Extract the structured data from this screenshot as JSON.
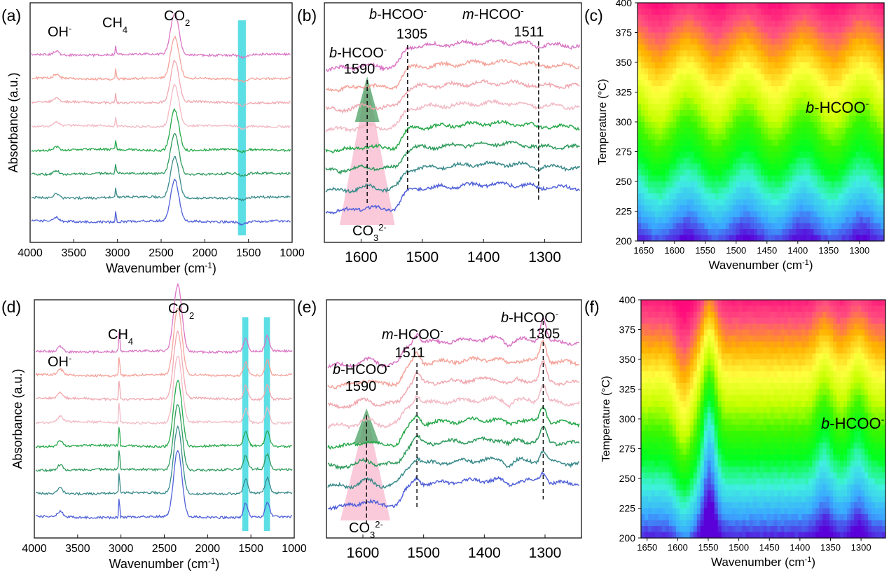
{
  "figure": {
    "panels": {
      "a": {
        "tag": "(a)"
      },
      "b": {
        "tag": "(b)"
      },
      "c": {
        "tag": "(c)"
      },
      "d": {
        "tag": "(d)"
      },
      "e": {
        "tag": "(e)"
      },
      "f": {
        "tag": "(f)"
      }
    }
  },
  "chart_data": [
    {
      "panel": "a",
      "type": "line",
      "xlabel_main": "Wavenumber (cm",
      "xlabel_sup": "-1",
      "xlabel_end": ")",
      "ylabel": "Absorbance (a.u.)",
      "xlim": [
        4000,
        1000
      ],
      "x_reversed": true,
      "xticks": [
        4000,
        3500,
        3000,
        2500,
        2000,
        1500,
        1000
      ],
      "yticks_shown": false,
      "series_colors": [
        "#5060d8",
        "#3a8a8a",
        "#2e9a5c",
        "#26a84a",
        "#f2b9c4",
        "#f0a8b0",
        "#f4a39a",
        "#d975c4"
      ],
      "highlight_bands": [
        [
          1620,
          1530
        ]
      ],
      "highlight_color": "#33d6df",
      "features": [
        {
          "x": 3700,
          "type": "peak",
          "height": 0.6,
          "width": 30
        },
        {
          "x": 3020,
          "type": "spike",
          "height": 1.6,
          "width": 6
        },
        {
          "x": 2340,
          "type": "co2",
          "height": 4.0,
          "width": 40
        },
        {
          "x": 1570,
          "type": "dip",
          "height": -0.4,
          "width": 40
        }
      ],
      "annotations": [
        {
          "x": 3700,
          "main": "OH",
          "sup": "-",
          "sub": ""
        },
        {
          "x": 3020,
          "main": "CH",
          "sup": "",
          "sub": "4"
        },
        {
          "x": 2340,
          "main": "CO",
          "sup": "",
          "sub": "2"
        }
      ]
    },
    {
      "panel": "b",
      "type": "line",
      "xlim": [
        1660,
        1240
      ],
      "x_reversed": true,
      "xticks": [
        1600,
        1500,
        1400,
        1300
      ],
      "yticks_shown": false,
      "series_colors": [
        "#5060d8",
        "#3a8a8a",
        "#2e9a5c",
        "#26a84a",
        "#f2b9c4",
        "#f0a8b0",
        "#f4a39a",
        "#d975c4"
      ],
      "dashed_markers": [
        1590,
        1524,
        1310
      ],
      "regions": [
        {
          "x": [
            1635,
            1590,
            1545
          ],
          "kind": "pink-triangle"
        },
        {
          "x": [
            1610,
            1590,
            1570
          ],
          "kind": "green-triangle"
        }
      ],
      "annotations": [
        {
          "pre": "",
          "italic": "m",
          "main": "-HCOO",
          "sup": "-",
          "sub": "",
          "value": "1511"
        },
        {
          "pre": "",
          "italic": "b",
          "main": "-HCOO",
          "sup": "-",
          "sub": "",
          "value": "1305"
        },
        {
          "pre": "",
          "italic": "b",
          "main": "-HCOO",
          "sup": "-",
          "sub": "",
          "value": "1590"
        },
        {
          "pre": "",
          "italic": "",
          "main": "CO",
          "sup": "2-",
          "sub": "3",
          "value": ""
        }
      ]
    },
    {
      "panel": "c",
      "type": "heatmap",
      "xlabel_main": "Wavenumber (cm",
      "xlabel_sup": "-1",
      "xlabel_end": ")",
      "ylabel_main": "Temperature (",
      "ylabel_unit": "°C",
      "ylabel_end": ")",
      "xlim": [
        1660,
        1260
      ],
      "x_reversed": true,
      "ylim": [
        200,
        400
      ],
      "xticks": [
        1650,
        1600,
        1550,
        1500,
        1450,
        1400,
        1350,
        1300
      ],
      "yticks": [
        200,
        225,
        250,
        275,
        300,
        325,
        350,
        375,
        400
      ],
      "colormap": [
        "#5a00d8",
        "#3aa8ff",
        "#40f0e0",
        "#00ff20",
        "#3bf700",
        "#c8ff00",
        "#ffff40",
        "#ffb000",
        "#ff5080",
        "#ff0a7a"
      ],
      "annotation": {
        "italic": "b",
        "main": "-HCOO",
        "sup": "-"
      }
    },
    {
      "panel": "d",
      "type": "line",
      "xlabel_main": "Wavenumber (cm",
      "xlabel_sup": "-1",
      "xlabel_end": ")",
      "ylabel": "Absorbance (a.u.)",
      "xlim": [
        4000,
        1000
      ],
      "x_reversed": true,
      "xticks": [
        4000,
        3500,
        3000,
        2500,
        2000,
        1500,
        1000
      ],
      "yticks_shown": false,
      "series_colors": [
        "#5060d8",
        "#3a8a8a",
        "#2e9a5c",
        "#26a84a",
        "#f2b9c4",
        "#f0a8b0",
        "#f4a39a",
        "#d975c4"
      ],
      "highlight_bands": [
        [
          1600,
          1530
        ],
        [
          1350,
          1280
        ]
      ],
      "highlight_color": "#33d6df",
      "features": [
        {
          "x": 3700,
          "type": "peak",
          "height": 0.9,
          "width": 30
        },
        {
          "x": 3020,
          "type": "spike",
          "height": 3.5,
          "width": 6
        },
        {
          "x": 2340,
          "type": "co2",
          "height": 6.5,
          "width": 40
        },
        {
          "x": 1560,
          "type": "peak",
          "height": 2.2,
          "width": 25
        },
        {
          "x": 1310,
          "type": "peak",
          "height": 2.4,
          "width": 25
        }
      ],
      "annotations": [
        {
          "x": 3700,
          "main": "OH",
          "sup": "-",
          "sub": ""
        },
        {
          "x": 3020,
          "main": "CH",
          "sup": "",
          "sub": "4"
        },
        {
          "x": 2340,
          "main": "CO",
          "sup": "",
          "sub": "2"
        }
      ]
    },
    {
      "panel": "e",
      "type": "line",
      "xlim": [
        1660,
        1240
      ],
      "x_reversed": true,
      "xticks": [
        1600,
        1500,
        1400,
        1300
      ],
      "yticks_shown": false,
      "series_colors": [
        "#5060d8",
        "#3a8a8a",
        "#2e9a5c",
        "#26a84a",
        "#f2b9c4",
        "#f0a8b0",
        "#f4a39a",
        "#d975c4"
      ],
      "dashed_markers": [
        1594,
        1511,
        1303
      ],
      "regions": [
        {
          "x": [
            1637,
            1594,
            1555
          ],
          "kind": "pink-triangle"
        },
        {
          "x": [
            1615,
            1594,
            1573
          ],
          "kind": "green-triangle"
        }
      ],
      "annotations": [
        {
          "pre": "",
          "italic": "b",
          "main": "-HCOO",
          "sup": "-",
          "sub": "",
          "value": "1305"
        },
        {
          "pre": "",
          "italic": "m",
          "main": "-HCOO",
          "sup": "-",
          "sub": "",
          "value": "1511"
        },
        {
          "pre": "",
          "italic": "b",
          "main": "-HCOO",
          "sup": "-",
          "sub": "",
          "value": "1590"
        },
        {
          "pre": "",
          "italic": "",
          "main": "CO",
          "sup": "2-",
          "sub": "3",
          "value": ""
        }
      ]
    },
    {
      "panel": "f",
      "type": "heatmap",
      "xlabel_main": "Wavenumber (cm",
      "xlabel_sup": "-1",
      "xlabel_end": ")",
      "ylabel_main": "Temperature (",
      "ylabel_unit": "°C",
      "ylabel_end": ")",
      "xlim": [
        1660,
        1260
      ],
      "x_reversed": true,
      "ylim": [
        200,
        400
      ],
      "xticks": [
        1650,
        1600,
        1550,
        1500,
        1450,
        1400,
        1350,
        1300
      ],
      "yticks": [
        200,
        225,
        250,
        275,
        300,
        325,
        350,
        375,
        400
      ],
      "colormap": [
        "#5a00d8",
        "#3aa8ff",
        "#40f0e0",
        "#00ff20",
        "#3bf700",
        "#c8ff00",
        "#ffff40",
        "#ffb000",
        "#ff5080",
        "#ff0a7a"
      ],
      "bands": [
        1590,
        1548,
        1360,
        1305
      ],
      "annotation": {
        "italic": "b",
        "main": "-HCOO",
        "sup": "-"
      }
    }
  ]
}
